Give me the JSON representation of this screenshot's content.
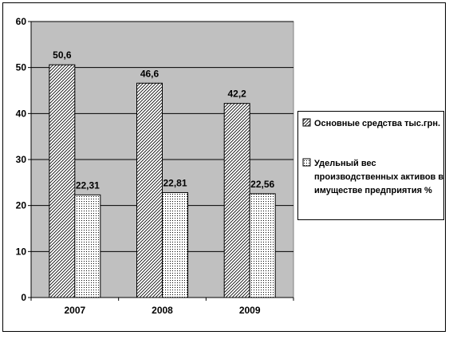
{
  "chart_data": {
    "type": "bar",
    "title": "",
    "xlabel": "",
    "ylabel": "",
    "categories": [
      "2007",
      "2008",
      "2009"
    ],
    "series": [
      {
        "name": "Основные средства тыс.грн.",
        "values": [
          50.6,
          46.6,
          42.2
        ],
        "labels": [
          "50,6",
          "46,6",
          "42,2"
        ],
        "pattern": "diagonal-hatch"
      },
      {
        "name": "Удельный вес производственных активов в имуществе предприятия %",
        "name_lines": [
          "Удельный вес",
          "производственных активов в",
          "имуществе предприятия %"
        ],
        "values": [
          22.31,
          22.81,
          22.56
        ],
        "labels": [
          "22,31",
          "22,81",
          "22,56"
        ],
        "pattern": "dots"
      }
    ],
    "ylim": [
      0,
      60
    ],
    "yticks": [
      0,
      10,
      20,
      30,
      40,
      50,
      60
    ],
    "grid": true,
    "plot_background": "#c0c0c0",
    "legend_position": "right"
  }
}
